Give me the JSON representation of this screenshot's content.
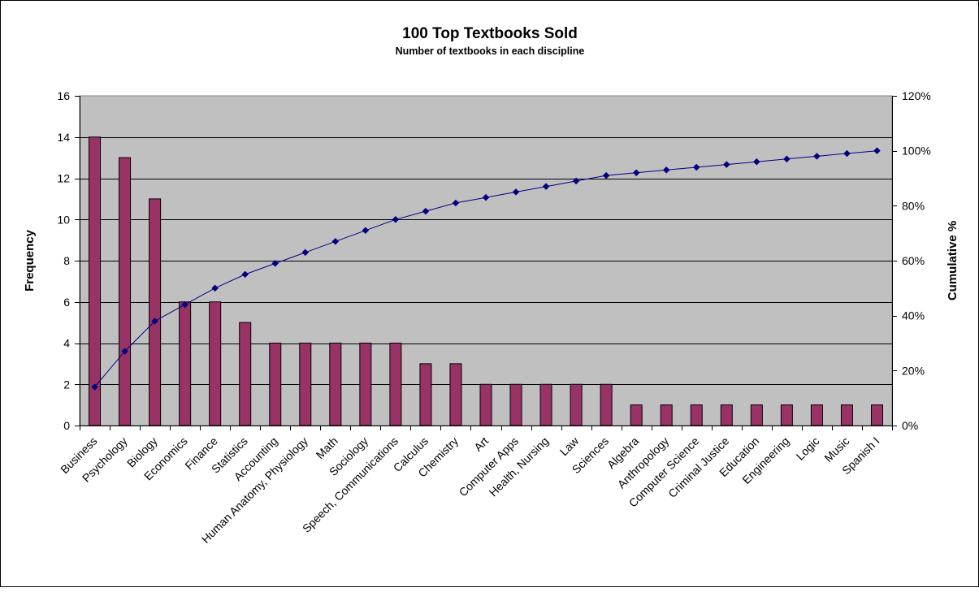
{
  "chart_data": {
    "type": "bar",
    "title": "100 Top Textbooks Sold",
    "subtitle": "Number of textbooks in each discipline",
    "xlabel": "",
    "ylabel": "Frequency",
    "y2label": "Cumulative %",
    "ylim": [
      0,
      16
    ],
    "y2lim": [
      0,
      1.2
    ],
    "yticks": [
      "0",
      "2",
      "4",
      "6",
      "8",
      "10",
      "12",
      "14",
      "16"
    ],
    "y2ticks": [
      "0%",
      "20%",
      "40%",
      "60%",
      "80%",
      "100%",
      "120%"
    ],
    "grid": true,
    "legend": "none",
    "categories": [
      "Business",
      "Psychology",
      "Biology",
      "Economics",
      "Finance",
      "Statistics",
      "Accounting",
      "Human Anatomy, Physiology",
      "Math",
      "Sociology",
      "Speech, Communications",
      "Calculus",
      "Chemistry",
      "Art",
      "Computer Apps",
      "Health, Nursing",
      "Law",
      "Sciences",
      "Algebra",
      "Anthropology",
      "Computer Science",
      "Criminal Justice",
      "Education",
      "Engineering",
      "Logic",
      "Music",
      "Spanish I"
    ],
    "series": [
      {
        "type": "bar",
        "axis": "left",
        "values": [
          14,
          13,
          11,
          6,
          6,
          5,
          4,
          4,
          4,
          4,
          4,
          3,
          3,
          2,
          2,
          2,
          2,
          2,
          1,
          1,
          1,
          1,
          1,
          1,
          1,
          1,
          1
        ]
      },
      {
        "type": "line",
        "axis": "right",
        "values": [
          0.14,
          0.27,
          0.38,
          0.44,
          0.5,
          0.55,
          0.59,
          0.63,
          0.67,
          0.71,
          0.75,
          0.78,
          0.81,
          0.83,
          0.85,
          0.87,
          0.89,
          0.91,
          0.92,
          0.93,
          0.94,
          0.95,
          0.96,
          0.97,
          0.98,
          0.99,
          1.0
        ]
      }
    ],
    "colors": {
      "bar": "#993366",
      "line": "#000080",
      "plot_bg": "#c0c0c0",
      "gridline": "#000000"
    }
  }
}
